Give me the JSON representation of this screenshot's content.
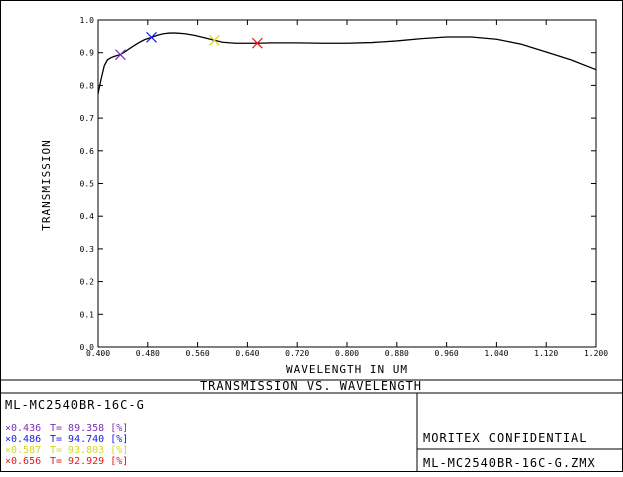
{
  "chart_data": {
    "type": "line",
    "title": "TRANSMISSION VS. WAVELENGTH",
    "xlabel": "WAVELENGTH IN UM",
    "ylabel": "TRANSMISSION",
    "xlim": [
      0.4,
      1.2
    ],
    "ylim": [
      0.0,
      1.0
    ],
    "x_ticks": [
      "0.400",
      "0.480",
      "0.560",
      "0.640",
      "0.720",
      "0.800",
      "0.880",
      "0.960",
      "1.040",
      "1.120",
      "1.200"
    ],
    "y_ticks": [
      "0.0",
      "0.1",
      "0.2",
      "0.3",
      "0.4",
      "0.5",
      "0.6",
      "0.7",
      "0.8",
      "0.9",
      "1.0"
    ],
    "x_tick_values": [
      0.4,
      0.48,
      0.56,
      0.64,
      0.72,
      0.8,
      0.88,
      0.96,
      1.04,
      1.12,
      1.2
    ],
    "y_tick_values": [
      0.0,
      0.1,
      0.2,
      0.3,
      0.4,
      0.5,
      0.6,
      0.7,
      0.8,
      0.9,
      1.0
    ],
    "grid": false,
    "series": [
      {
        "color": "#000000",
        "x": [
          0.4,
          0.405,
          0.41,
          0.415,
          0.42,
          0.425,
          0.43,
          0.436,
          0.445,
          0.455,
          0.465,
          0.475,
          0.486,
          0.495,
          0.505,
          0.515,
          0.525,
          0.54,
          0.555,
          0.57,
          0.587,
          0.6,
          0.62,
          0.64,
          0.656,
          0.68,
          0.72,
          0.76,
          0.8,
          0.84,
          0.88,
          0.92,
          0.96,
          1.0,
          1.04,
          1.08,
          1.12,
          1.16,
          1.2
        ],
        "y": [
          0.775,
          0.82,
          0.86,
          0.878,
          0.884,
          0.888,
          0.891,
          0.894,
          0.905,
          0.918,
          0.93,
          0.94,
          0.947,
          0.953,
          0.958,
          0.96,
          0.96,
          0.958,
          0.953,
          0.946,
          0.938,
          0.932,
          0.929,
          0.929,
          0.929,
          0.93,
          0.93,
          0.929,
          0.929,
          0.931,
          0.936,
          0.943,
          0.948,
          0.948,
          0.941,
          0.926,
          0.902,
          0.878,
          0.848
        ]
      }
    ],
    "markers": [
      {
        "label": "×0.436",
        "wavelength": 0.436,
        "value_text": "T= 89.358 [%]",
        "transmission": 0.894,
        "color": "#7a2fb8"
      },
      {
        "label": "×0.486",
        "wavelength": 0.486,
        "value_text": "T= 94.740 [%]",
        "transmission": 0.947,
        "color": "#1a1ae6"
      },
      {
        "label": "×0.587",
        "wavelength": 0.587,
        "value_text": "T= 93.803 [%]",
        "transmission": 0.938,
        "color": "#d6d61e"
      },
      {
        "label": "×0.656",
        "wavelength": 0.656,
        "value_text": "T= 92.929 [%]",
        "transmission": 0.929,
        "color": "#e01a1a"
      }
    ]
  },
  "footer": {
    "title": "TRANSMISSION VS. WAVELENGTH",
    "lens_name": "ML-MC2540BR-16C-G",
    "confidential": "MORITEX CONFIDENTIAL",
    "file_name": "ML-MC2540BR-16C-G.ZMX"
  }
}
